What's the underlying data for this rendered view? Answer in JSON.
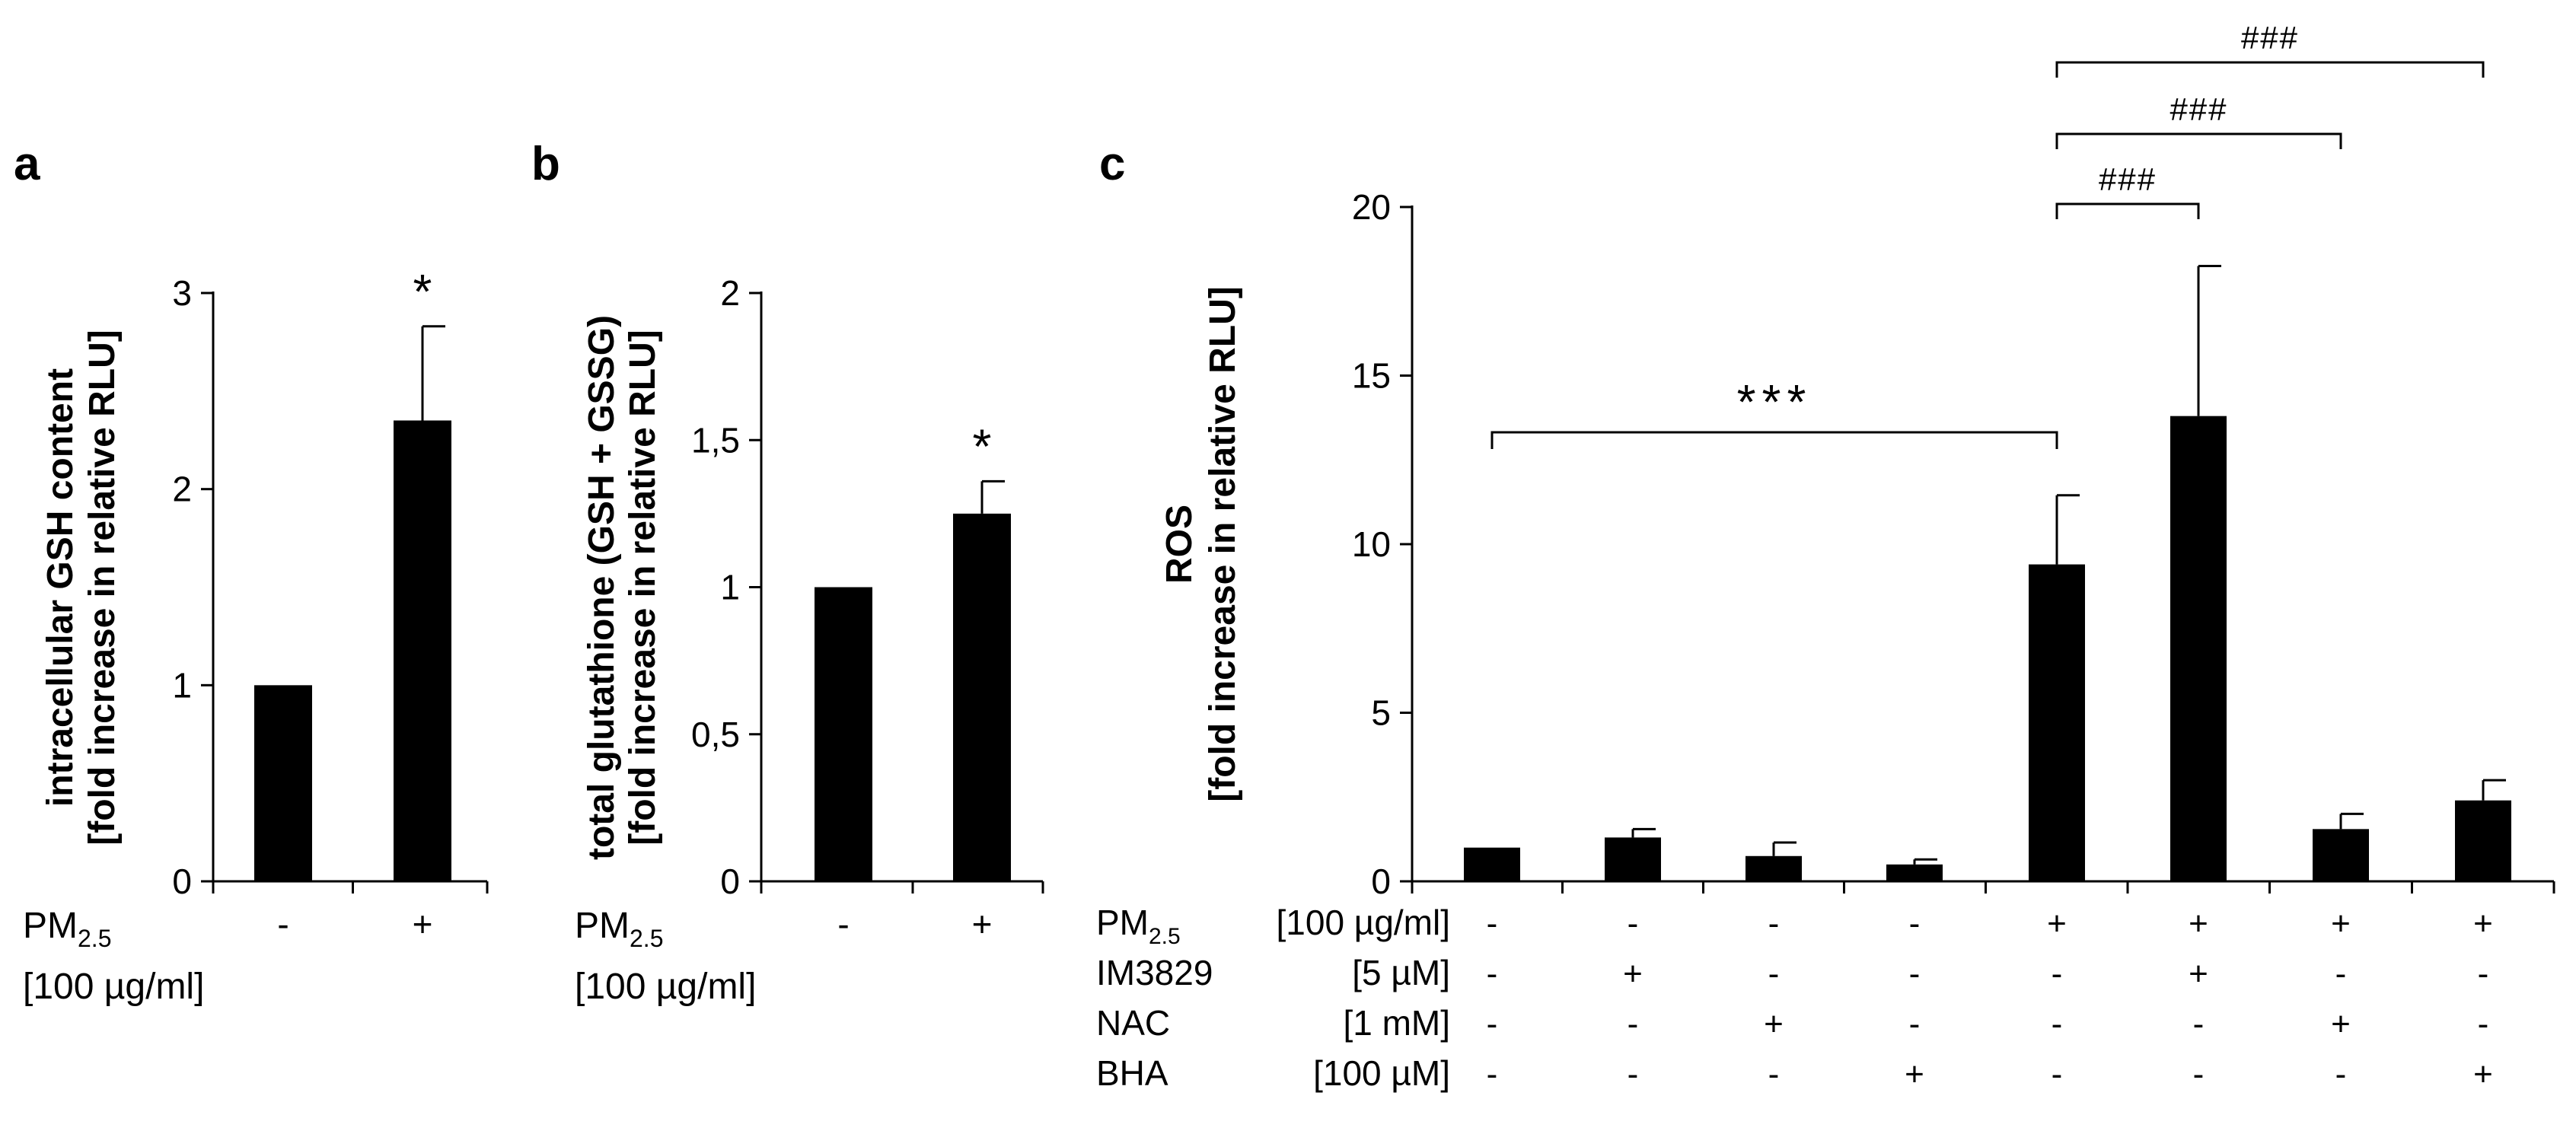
{
  "chart_data": [
    {
      "type": "bar",
      "panel_label": "a",
      "ylabel_lines": [
        "intracellular  GSH content",
        "[fold increase in relative RLU]"
      ],
      "y_ticks": [
        "0",
        "1",
        "2",
        "3"
      ],
      "ylim": [
        0,
        3
      ],
      "categories": [
        "-",
        "+"
      ],
      "values": [
        1.0,
        2.35
      ],
      "errors": [
        0,
        0.48
      ],
      "significance": [
        "",
        "*"
      ],
      "row_label": "PM",
      "row_label_sub": "2.5",
      "row_unit": "[100 µg/ml]"
    },
    {
      "type": "bar",
      "panel_label": "b",
      "ylabel_lines": [
        "total glutathione (GSH + GSSG)",
        "[fold increase in relative RLU]"
      ],
      "y_ticks": [
        "0",
        "0,5",
        "1",
        "1,5",
        "2"
      ],
      "ylim": [
        0,
        2
      ],
      "categories": [
        "-",
        "+"
      ],
      "values": [
        1.0,
        1.25
      ],
      "errors": [
        0,
        0.11
      ],
      "significance": [
        "",
        "*"
      ],
      "row_label": "PM",
      "row_label_sub": "2.5",
      "row_unit": "[100 µg/ml]"
    },
    {
      "type": "bar",
      "panel_label": "c",
      "ylabel_lines": [
        "ROS",
        "[fold increase in relative RLU]"
      ],
      "y_ticks": [
        "0",
        "5",
        "10",
        "15",
        "20"
      ],
      "ylim": [
        0,
        20
      ],
      "values": [
        1.0,
        1.3,
        0.75,
        0.5,
        9.4,
        13.8,
        1.55,
        2.4
      ],
      "errors": [
        0,
        0.25,
        0.4,
        0.15,
        2.05,
        4.45,
        0.45,
        0.6
      ],
      "brackets": [
        {
          "from": 0,
          "to": 4,
          "label": "***"
        },
        {
          "from": 4,
          "to": 5,
          "label": "###"
        },
        {
          "from": 4,
          "to": 6,
          "label": "###"
        },
        {
          "from": 4,
          "to": 7,
          "label": "###"
        }
      ],
      "treatment_rows": [
        {
          "label": "PM",
          "label_sub": "2.5",
          "unit": "[100 µg/ml]",
          "signs": [
            "-",
            "-",
            "-",
            "-",
            "+",
            "+",
            "+",
            "+"
          ]
        },
        {
          "label": "IM3829",
          "label_sub": "",
          "unit": "[5 µM]",
          "signs": [
            "-",
            "+",
            "-",
            "-",
            "-",
            "+",
            "-",
            "-"
          ]
        },
        {
          "label": "NAC",
          "label_sub": "",
          "unit": "[1 mM]",
          "signs": [
            "-",
            "-",
            "+",
            "-",
            "-",
            "-",
            "+",
            "-"
          ]
        },
        {
          "label": "BHA",
          "label_sub": "",
          "unit": "[100 µM]",
          "signs": [
            "-",
            "-",
            "-",
            "+",
            "-",
            "-",
            "-",
            "+"
          ]
        }
      ]
    }
  ]
}
